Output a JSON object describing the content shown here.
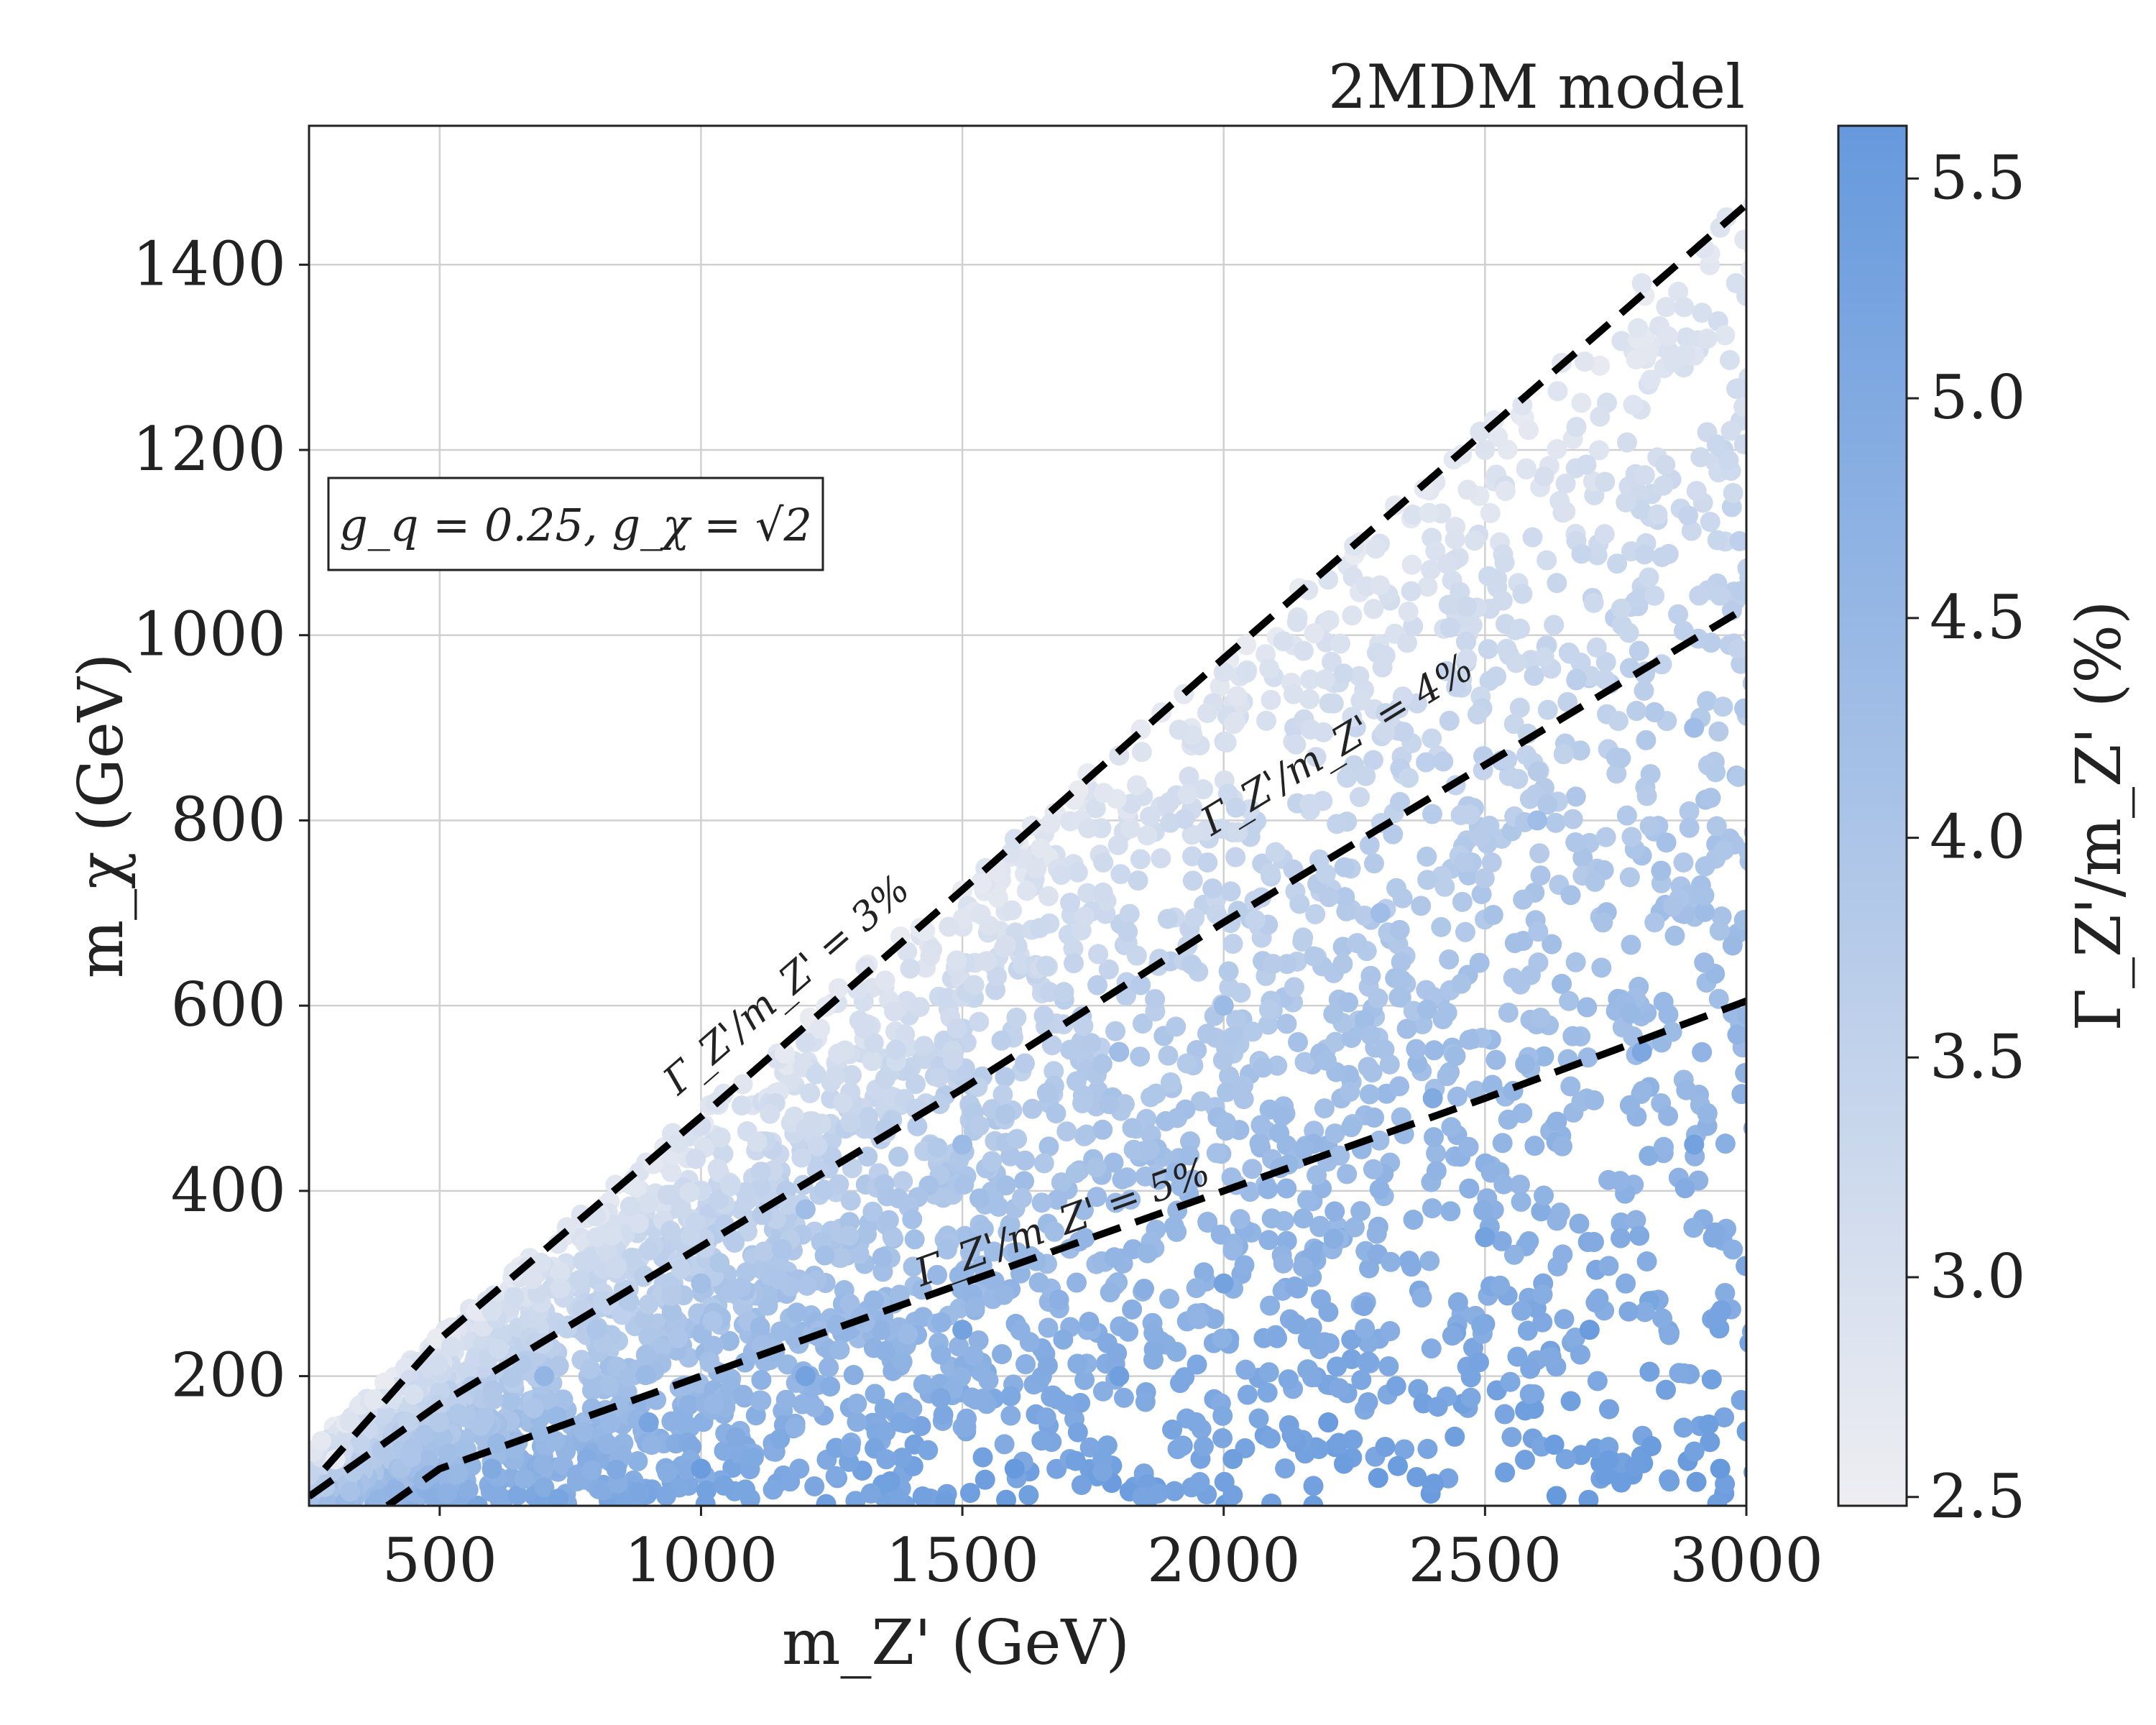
{
  "chart_data": {
    "type": "scatter",
    "title": "2MDM model",
    "xlabel": "m_Z' (GeV)",
    "ylabel": "m_χ (GeV)",
    "colorbar_label": "Γ_Z'/m_Z' (%)",
    "xlim": [
      250,
      3000
    ],
    "ylim": [
      60,
      1550
    ],
    "x_ticks": [
      500,
      1000,
      1500,
      2000,
      2500,
      3000
    ],
    "y_ticks": [
      200,
      400,
      600,
      800,
      1000,
      1200,
      1400
    ],
    "colorbar_range": [
      2.48,
      5.62
    ],
    "colorbar_ticks": [
      "2.5",
      "3.0",
      "3.5",
      "4.0",
      "4.5",
      "5.0",
      "5.5"
    ],
    "colormap": {
      "low": "#eeeef2",
      "high": "#6699dd"
    },
    "grid": true,
    "annotation": "g_q = 0.25, g_χ = √2",
    "contours": [
      {
        "label": "Γ_Z'/m_Z' = 3%",
        "level": 3,
        "x": [
          280,
          500,
          1000,
          1500,
          2000,
          2500,
          3000
        ],
        "y": [
          100,
          240,
          480,
          725,
          975,
          1220,
          1465
        ]
      },
      {
        "label": "Γ_Z'/m_Z' = 4%",
        "level": 4,
        "x": [
          250,
          500,
          1000,
          1500,
          2000,
          2500,
          3000
        ],
        "y": [
          70,
          170,
          340,
          510,
          690,
          860,
          1030
        ]
      },
      {
        "label": "Γ_Z'/m_Z' = 5%",
        "level": 5,
        "x": [
          400,
          500,
          1000,
          1500,
          2000,
          2500,
          3000
        ],
        "y": [
          60,
          100,
          200,
          300,
          400,
          500,
          605
        ]
      }
    ],
    "sample_points": [
      [
        300,
        110,
        2.6
      ],
      [
        450,
        180,
        3.0
      ],
      [
        600,
        270,
        3.0
      ],
      [
        800,
        350,
        3.0
      ],
      [
        1000,
        470,
        3.1
      ],
      [
        1200,
        560,
        3.1
      ],
      [
        1400,
        640,
        3.1
      ],
      [
        1600,
        780,
        3.0
      ],
      [
        1800,
        870,
        2.9
      ],
      [
        2000,
        960,
        2.95
      ],
      [
        2200,
        1060,
        2.95
      ],
      [
        2500,
        1200,
        2.9
      ],
      [
        2800,
        1380,
        2.85
      ],
      [
        2950,
        1440,
        2.9
      ],
      [
        500,
        150,
        3.8
      ],
      [
        800,
        250,
        4.0
      ],
      [
        1000,
        300,
        4.2
      ],
      [
        1200,
        380,
        4.3
      ],
      [
        1500,
        450,
        4.4
      ],
      [
        1800,
        550,
        4.3
      ],
      [
        2000,
        600,
        4.4
      ],
      [
        2300,
        700,
        4.3
      ],
      [
        2600,
        800,
        4.3
      ],
      [
        2900,
        900,
        4.3
      ],
      [
        600,
        100,
        5.0
      ],
      [
        900,
        150,
        5.2
      ],
      [
        1200,
        200,
        5.3
      ],
      [
        1500,
        250,
        5.3
      ],
      [
        1800,
        200,
        5.4
      ],
      [
        2000,
        300,
        5.3
      ],
      [
        2200,
        150,
        5.5
      ],
      [
        2500,
        350,
        5.3
      ],
      [
        2700,
        250,
        5.5
      ],
      [
        2900,
        450,
        5.3
      ],
      [
        2950,
        100,
        5.6
      ],
      [
        1600,
        100,
        5.6
      ],
      [
        2400,
        500,
        5.0
      ],
      [
        2800,
        550,
        5.1
      ],
      [
        1000,
        100,
        5.5
      ],
      [
        700,
        200,
        4.6
      ]
    ]
  }
}
